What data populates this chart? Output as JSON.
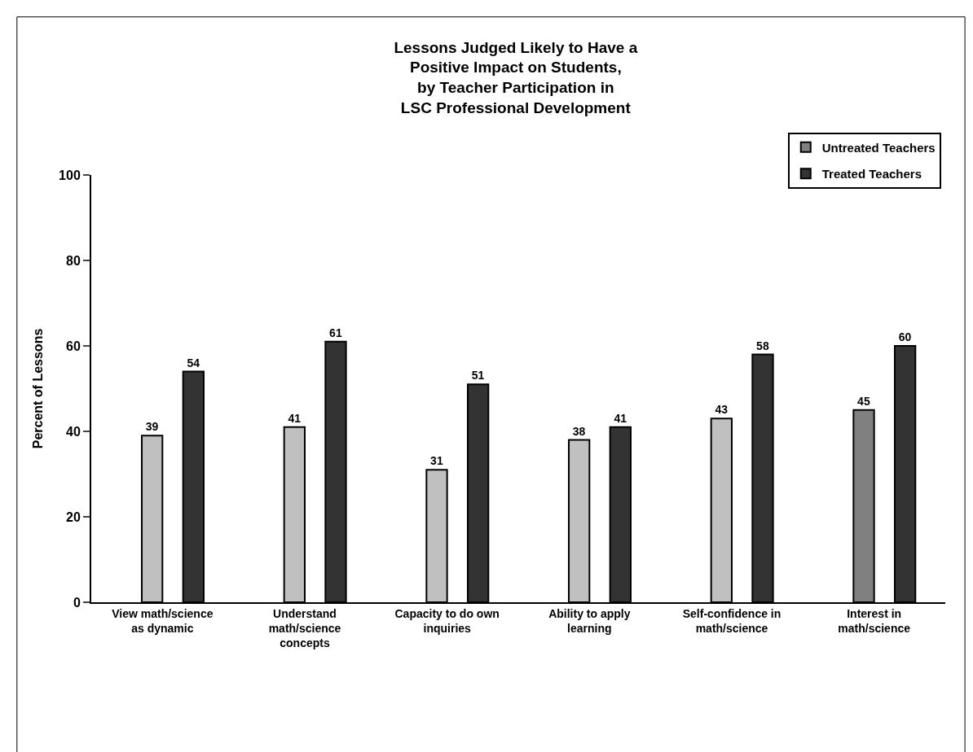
{
  "chart_data": {
    "type": "bar",
    "title": "Lessons Judged Likely to Have a\nPositive Impact on Students,\nby Teacher Participation in\nLSC Professional Development",
    "ylabel": "Percent of Lessons",
    "categories": [
      "View math/science\nas dynamic",
      "Understand\nmath/science\nconcepts",
      "Capacity to do own\ninquiries",
      "Ability to apply\nlearning",
      "Self-confidence in\nmath/science",
      "Interest in\nmath/science"
    ],
    "series": [
      {
        "name": "Untreated Teachers",
        "color": "#808080",
        "colors": [
          "#c0c0c0",
          "#c0c0c0",
          "#c0c0c0",
          "#c0c0c0",
          "#c0c0c0",
          "#808080"
        ],
        "values": [
          39,
          41,
          31,
          38,
          43,
          45
        ]
      },
      {
        "name": "Treated Teachers",
        "color": "#333333",
        "values": [
          54,
          61,
          51,
          41,
          58,
          60
        ]
      }
    ],
    "ylim": [
      0,
      100
    ],
    "yticks": [
      0,
      20,
      40,
      60,
      80,
      100
    ],
    "legend": "top right",
    "data_labels": true
  }
}
